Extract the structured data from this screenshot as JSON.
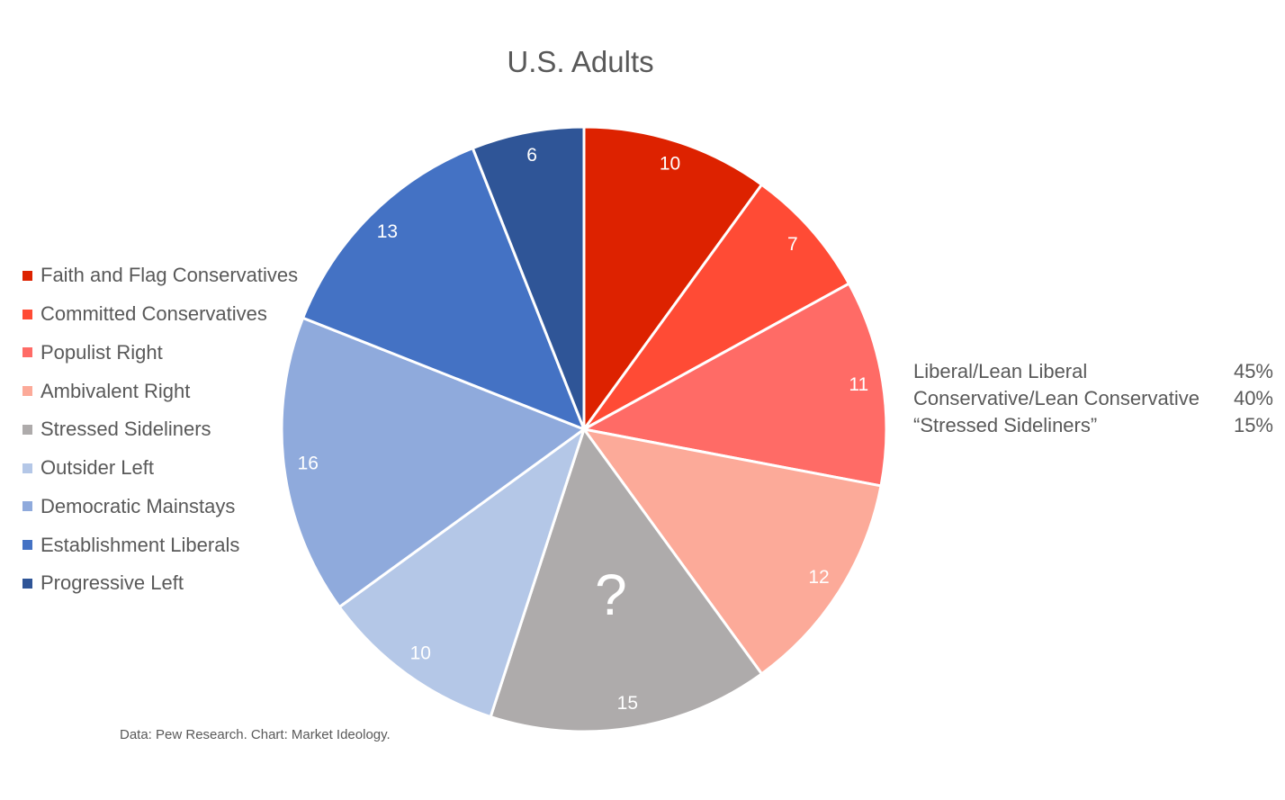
{
  "chart_data": {
    "type": "pie",
    "title": "U.S. Adults",
    "categories": [
      "Faith and Flag Conservatives",
      "Committed Conservatives",
      "Populist Right",
      "Ambivalent Right",
      "Stressed Sideliners",
      "Outsider Left",
      "Democratic Mainstays",
      "Establishment Liberals",
      "Progressive Left"
    ],
    "values": [
      10,
      7,
      11,
      12,
      15,
      10,
      16,
      13,
      6
    ],
    "data_labels": [
      "10",
      "7",
      "11",
      "12",
      "15",
      "10",
      "16",
      "13",
      "6"
    ],
    "colors": [
      "#dd2200",
      "#ff4b35",
      "#ff6b66",
      "#fcaa99",
      "#aeabab",
      "#b4c7e7",
      "#8faadc",
      "#4472c4",
      "#2f5597"
    ],
    "annotations": [
      {
        "slice": "Stressed Sideliners",
        "text": "?"
      }
    ],
    "legend_position": "left",
    "start_angle_deg": 0,
    "direction": "clockwise"
  },
  "summary": [
    {
      "label": "Liberal/Lean Liberal",
      "value": "45%"
    },
    {
      "label": "Conservative/Lean Conservative",
      "value": "40%"
    },
    {
      "label": "“Stressed Sideliners”",
      "value": "15%"
    }
  ],
  "source": "Data: Pew Research. Chart: Market Ideology."
}
